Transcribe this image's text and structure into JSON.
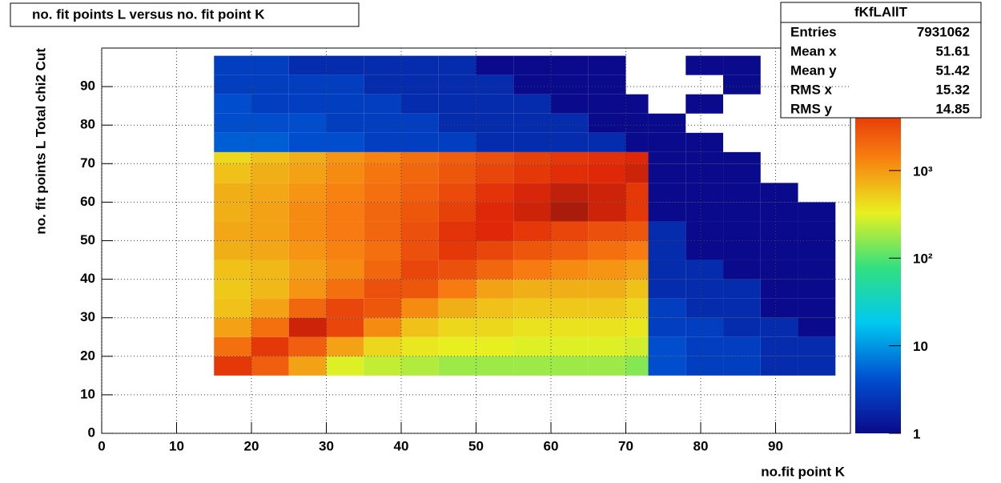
{
  "chart_data": {
    "type": "heatmap",
    "title": "no. fit points L versus no. fit point K",
    "x_label": "no.fit point K",
    "y_label": "no. fit points  L   Total chi2 Cut",
    "xlim": [
      0,
      100
    ],
    "ylim": [
      0,
      100
    ],
    "xticks": [
      0,
      10,
      20,
      30,
      40,
      50,
      60,
      70,
      80,
      90
    ],
    "yticks": [
      0,
      10,
      20,
      30,
      40,
      50,
      60,
      70,
      80,
      90
    ],
    "grid": true,
    "zlog": true,
    "zlim": [
      1,
      25000
    ],
    "zticks": [
      1,
      10,
      {
        "value": 100,
        "label": "10²"
      },
      {
        "value": 1000,
        "label": "10³"
      }
    ],
    "palette": [
      "#0a0a8c",
      "#0050d0",
      "#00c8f0",
      "#30e080",
      "#e8f020",
      "#f88010",
      "#e02808",
      "#701010"
    ],
    "xbins": [
      15,
      20,
      25,
      30,
      35,
      40,
      45,
      50,
      55,
      60,
      65,
      70,
      73,
      78,
      83,
      88,
      93,
      98
    ],
    "ybins": [
      15,
      20,
      25,
      30,
      35,
      40,
      45,
      50,
      55,
      60,
      65,
      70,
      73,
      78,
      83,
      88,
      93,
      98
    ],
    "z": [
      [
        4500,
        2400,
        900,
        300,
        240,
        210,
        180,
        180,
        180,
        180,
        180,
        150,
        4,
        3,
        3,
        2,
        2
      ],
      [
        1800,
        4500,
        2400,
        900,
        450,
        360,
        330,
        330,
        300,
        300,
        300,
        270,
        4,
        3,
        3,
        2,
        2
      ],
      [
        900,
        1800,
        7500,
        3600,
        1200,
        600,
        450,
        450,
        390,
        390,
        390,
        360,
        3,
        3,
        2,
        2,
        1
      ],
      [
        600,
        900,
        2100,
        3600,
        2700,
        1200,
        750,
        600,
        540,
        540,
        540,
        450,
        3,
        2,
        2,
        1,
        1
      ],
      [
        540,
        660,
        1050,
        1800,
        3000,
        2700,
        1500,
        900,
        750,
        750,
        750,
        600,
        2,
        2,
        2,
        1,
        1
      ],
      [
        600,
        660,
        900,
        1200,
        2100,
        3600,
        3000,
        2100,
        1500,
        1200,
        1050,
        900,
        2,
        2,
        1,
        1,
        1
      ],
      [
        750,
        840,
        1050,
        1350,
        1800,
        3000,
        4500,
        3600,
        2700,
        2400,
        1800,
        1500,
        2,
        1,
        1,
        1,
        1
      ],
      [
        840,
        900,
        1200,
        1500,
        2100,
        3000,
        4800,
        6000,
        4500,
        3600,
        3000,
        2700,
        2,
        1,
        1,
        1,
        1
      ],
      [
        750,
        900,
        1200,
        1500,
        2100,
        2700,
        3900,
        6000,
        7500,
        12000,
        7500,
        4500,
        1,
        1,
        1,
        1,
        1
      ],
      [
        750,
        840,
        1050,
        1350,
        1800,
        2400,
        3300,
        4800,
        6600,
        9000,
        7500,
        4500,
        1,
        1,
        1,
        1,
        null
      ],
      [
        600,
        750,
        900,
        1200,
        1650,
        2100,
        2700,
        3600,
        4500,
        5400,
        6000,
        7500,
        1,
        1,
        1,
        null,
        null
      ],
      [
        450,
        600,
        750,
        1050,
        1350,
        1800,
        2400,
        3000,
        3900,
        4500,
        5100,
        6000,
        1,
        1,
        1,
        null,
        null
      ],
      [
        5,
        5,
        4,
        4,
        3,
        3,
        3,
        2,
        2,
        2,
        2,
        1,
        1,
        1,
        null,
        null,
        null
      ],
      [
        4,
        4,
        4,
        3,
        3,
        3,
        2,
        2,
        2,
        2,
        1,
        1,
        1,
        null,
        null,
        null,
        null
      ],
      [
        4,
        3,
        3,
        3,
        3,
        2,
        2,
        2,
        2,
        1,
        1,
        1,
        null,
        1,
        null,
        null,
        null
      ],
      [
        3,
        3,
        3,
        3,
        2,
        2,
        2,
        2,
        1,
        1,
        1,
        null,
        null,
        null,
        1,
        null,
        null
      ],
      [
        3,
        3,
        2,
        2,
        2,
        2,
        2,
        1,
        1,
        1,
        1,
        null,
        null,
        1,
        1,
        null,
        null
      ]
    ],
    "stats": {
      "title": "fKfLAllT",
      "rows": [
        {
          "label": "Entries",
          "value": 7931062
        },
        {
          "label": "Mean x",
          "value": 51.61
        },
        {
          "label": "Mean y",
          "value": 51.42
        },
        {
          "label": "RMS x",
          "value": 15.32
        },
        {
          "label": "RMS y",
          "value": 14.85
        }
      ]
    }
  }
}
